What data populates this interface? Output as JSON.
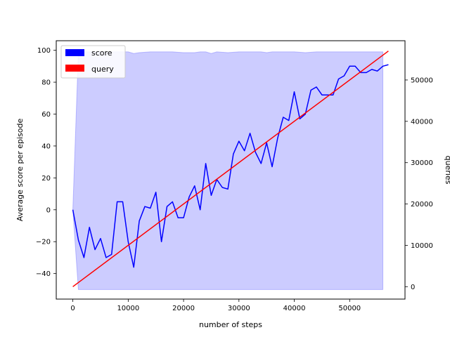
{
  "chart_data": {
    "type": "line",
    "xlabel": "number of steps",
    "ylabel": "Average score per episode",
    "y2label": "queries",
    "xlim": [
      -3000,
      60000
    ],
    "ylim": [
      -56,
      106
    ],
    "y2lim": [
      -3000,
      59500
    ],
    "xticks": [
      0,
      10000,
      20000,
      30000,
      40000,
      50000
    ],
    "yticks": [
      -40,
      -20,
      0,
      20,
      40,
      60,
      80,
      100
    ],
    "y2ticks": [
      0,
      10000,
      20000,
      30000,
      40000,
      50000
    ],
    "grid": false,
    "legend_position": "top-left",
    "legend": [
      {
        "label": "score",
        "color": "#0000ff"
      },
      {
        "label": "query",
        "color": "#ff0000"
      }
    ],
    "score_band": {
      "name": "score",
      "color": "#0000ff",
      "fill": "#ccccff",
      "upper": [
        [
          0,
          0
        ],
        [
          1000,
          98.5
        ],
        [
          2000,
          99
        ],
        [
          4000,
          99
        ],
        [
          6000,
          99
        ],
        [
          8000,
          99
        ],
        [
          10000,
          99
        ],
        [
          11000,
          98
        ],
        [
          12000,
          98.5
        ],
        [
          14000,
          99
        ],
        [
          16000,
          99
        ],
        [
          18000,
          99
        ],
        [
          20000,
          98.5
        ],
        [
          22000,
          98.5
        ],
        [
          23000,
          99
        ],
        [
          24000,
          99
        ],
        [
          25000,
          98
        ],
        [
          26000,
          99
        ],
        [
          28000,
          98.5
        ],
        [
          30000,
          99
        ],
        [
          34000,
          99
        ],
        [
          35000,
          98.5
        ],
        [
          36000,
          99
        ],
        [
          40000,
          99
        ],
        [
          42000,
          98.5
        ],
        [
          44000,
          99
        ],
        [
          48000,
          99
        ],
        [
          52000,
          99
        ],
        [
          56000,
          99
        ]
      ],
      "lower": [
        [
          0,
          0
        ],
        [
          1000,
          -50
        ],
        [
          56000,
          -50
        ]
      ],
      "close_x": 56000,
      "close_y": 91
    },
    "series": [
      {
        "name": "score",
        "axis": "left",
        "color": "#0000ff",
        "x": [
          0,
          1000,
          2000,
          3000,
          4000,
          5000,
          6000,
          7000,
          8000,
          9000,
          10000,
          11000,
          12000,
          13000,
          14000,
          15000,
          16000,
          17000,
          18000,
          19000,
          20000,
          21000,
          22000,
          23000,
          24000,
          25000,
          26000,
          27000,
          28000,
          29000,
          30000,
          31000,
          32000,
          33000,
          34000,
          35000,
          36000,
          37000,
          38000,
          39000,
          40000,
          41000,
          42000,
          43000,
          44000,
          45000,
          46000,
          47000,
          48000,
          49000,
          50000,
          51000,
          52000,
          53000,
          54000,
          55000,
          56000,
          57000
        ],
        "values": [
          0,
          -19,
          -30,
          -11,
          -25,
          -18,
          -30,
          -28,
          5,
          5,
          -20,
          -36,
          -7,
          2,
          1,
          11,
          -20,
          2,
          5,
          -5,
          -5,
          8,
          15,
          0,
          29,
          9,
          19,
          14,
          13,
          35,
          43,
          37,
          48,
          36,
          29,
          42,
          27,
          45,
          58,
          56,
          74,
          57,
          60,
          75,
          77,
          72,
          72,
          72,
          82,
          84,
          90,
          90,
          86,
          86,
          88,
          87,
          90,
          91
        ]
      },
      {
        "name": "query",
        "axis": "right",
        "color": "#ff0000",
        "x": [
          0,
          57000
        ],
        "values": [
          0,
          57000
        ]
      }
    ]
  }
}
